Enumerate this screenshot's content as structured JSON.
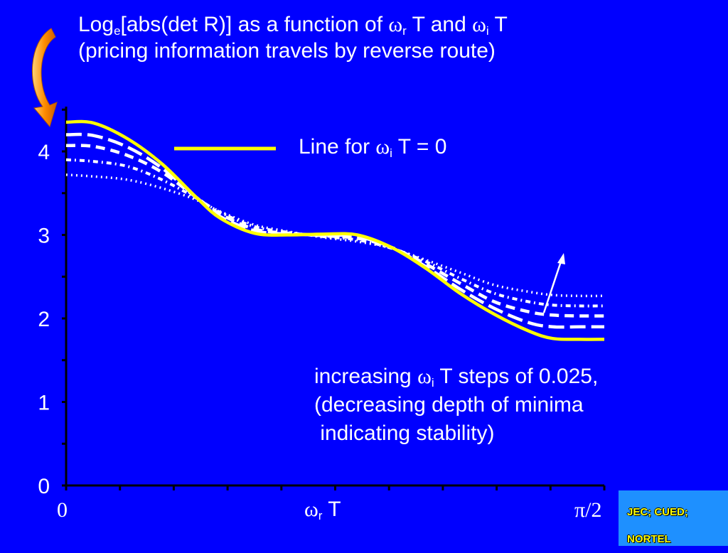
{
  "title": {
    "line1_prefix": "Log",
    "line1_sub_e": "e",
    "line1_middle": "[abs(det R)] as a function of ",
    "omega_symbol": "ω",
    "line1_sub_r": "r",
    "line1_and": " T and ",
    "line1_sub_i": "i",
    "line1_end": " T",
    "line2": "(pricing information travels by reverse route)"
  },
  "legend": {
    "label_prefix": "Line for ",
    "label_sub": "i",
    "label_suffix": " T = 0"
  },
  "annotation": {
    "line1_prefix": "increasing ",
    "line1_sub": "i",
    "line1_suffix": " T steps of 0.025,",
    "line2": "(decreasing depth of minima",
    "line3": " indicating stability)"
  },
  "axis": {
    "x_min_label": "0",
    "x_max_label": "π/2",
    "x_label_sub": "r",
    "x_label_suffix": " T",
    "y_tick_labels": [
      "0",
      "1",
      "2",
      "3",
      "4"
    ]
  },
  "footer": {
    "line1": "JEC; CUED;",
    "line2": "NORTEL"
  },
  "colors": {
    "background": "#0000ff",
    "yellow_line": "#ffff00",
    "white_lines": "#ffffff",
    "arrow_orange": "#ff8c00",
    "footer_box": "#1e90ff"
  },
  "chart_data": {
    "type": "line",
    "x_range": [
      0,
      1.5708
    ],
    "ylim": [
      0,
      4.6
    ],
    "yticks": [
      0,
      1,
      2,
      3,
      4
    ],
    "series": [
      {
        "style": "yellow-solid",
        "x": [
          0,
          0.08,
          0.18,
          0.28,
          0.38,
          0.45,
          0.55,
          0.65,
          0.75,
          0.85,
          0.95,
          1.05,
          1.15,
          1.25,
          1.35,
          1.42,
          1.5,
          1.5708
        ],
        "y": [
          4.35,
          4.34,
          4.15,
          3.85,
          3.45,
          3.2,
          3.02,
          3.0,
          3.01,
          3.0,
          2.85,
          2.6,
          2.3,
          2.05,
          1.85,
          1.76,
          1.75,
          1.75
        ]
      },
      {
        "style": "white-long-dash",
        "x": [
          0,
          0.08,
          0.18,
          0.28,
          0.38,
          0.45,
          0.55,
          0.65,
          0.75,
          0.85,
          0.95,
          1.05,
          1.15,
          1.25,
          1.35,
          1.42,
          1.5,
          1.5708
        ],
        "y": [
          4.2,
          4.19,
          4.05,
          3.8,
          3.45,
          3.22,
          3.05,
          3.01,
          3.0,
          2.98,
          2.85,
          2.62,
          2.35,
          2.12,
          1.95,
          1.9,
          1.9,
          1.9
        ]
      },
      {
        "style": "white-short-dash",
        "x": [
          0,
          0.08,
          0.18,
          0.28,
          0.38,
          0.45,
          0.55,
          0.65,
          0.75,
          0.85,
          0.95,
          1.05,
          1.15,
          1.25,
          1.35,
          1.42,
          1.5,
          1.5708
        ],
        "y": [
          4.07,
          4.06,
          3.95,
          3.75,
          3.45,
          3.25,
          3.07,
          3.02,
          2.99,
          2.96,
          2.85,
          2.65,
          2.42,
          2.2,
          2.08,
          2.04,
          2.03,
          2.03
        ]
      },
      {
        "style": "white-dash-dot",
        "x": [
          0,
          0.08,
          0.18,
          0.28,
          0.38,
          0.45,
          0.55,
          0.65,
          0.75,
          0.85,
          0.95,
          1.05,
          1.15,
          1.25,
          1.35,
          1.42,
          1.5,
          1.5708
        ],
        "y": [
          3.9,
          3.88,
          3.82,
          3.66,
          3.44,
          3.27,
          3.1,
          3.03,
          2.98,
          2.94,
          2.84,
          2.68,
          2.48,
          2.3,
          2.2,
          2.16,
          2.15,
          2.15
        ]
      },
      {
        "style": "white-dotted",
        "x": [
          0,
          0.08,
          0.18,
          0.28,
          0.38,
          0.45,
          0.55,
          0.65,
          0.75,
          0.85,
          0.95,
          1.05,
          1.15,
          1.25,
          1.35,
          1.42,
          1.5,
          1.5708
        ],
        "y": [
          3.72,
          3.7,
          3.66,
          3.56,
          3.42,
          3.28,
          3.12,
          3.04,
          2.97,
          2.92,
          2.84,
          2.7,
          2.55,
          2.4,
          2.32,
          2.28,
          2.27,
          2.27
        ]
      }
    ]
  }
}
